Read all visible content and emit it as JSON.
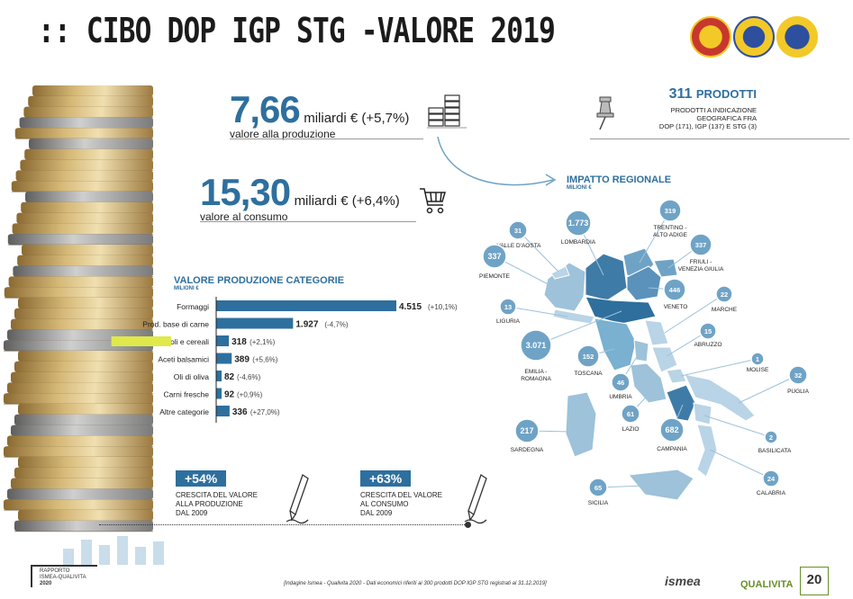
{
  "title": ":: CIBO DOP IGP STG -VALORE 2019",
  "production": {
    "value": "7,66",
    "unit": "miliardi € (+5,7%)",
    "label": "valore alla produzione"
  },
  "consumption": {
    "value": "15,30",
    "unit": "miliardi € (+6,4%)",
    "label": "valore al consumo"
  },
  "products": {
    "count": "311",
    "word": "PRODOTTI",
    "line1": "PRODOTTI A INDICAZIONE",
    "line2": "GEOGRAFICA FRA",
    "line3": "DOP (171), IGP (137) E STG (3)"
  },
  "colors": {
    "accent": "#2e6f9e",
    "highlight": "#dfe94a"
  },
  "chart_data": [
    {
      "type": "bar",
      "title": "VALORE PRODUZIONE CATEGORIE",
      "subtitle": "MILIONI €",
      "categories": [
        "Formaggi",
        "Prod. base di carne",
        "Ortofrutticoli e cereali",
        "Aceti balsamici",
        "Oli di oliva",
        "Carni fresche",
        "Altre categorie"
      ],
      "values": [
        4515,
        1927,
        318,
        389,
        82,
        92,
        336
      ],
      "value_labels": [
        "4.515",
        "1.927",
        "318",
        "389",
        "82",
        "92",
        "336"
      ],
      "changes": [
        "(+10,1%)",
        "(-4,7%)",
        "(+2,1%)",
        "(+5,6%)",
        "(-4,6%)",
        "(+0,9%)",
        "(+27,0%)"
      ],
      "highlight_word": "Ortofrutticoli",
      "highlight_rest": " e cereali"
    },
    {
      "type": "map",
      "title": "IMPATTO REGIONALE",
      "subtitle": "MILIONI €",
      "regions": [
        {
          "name": "VALLE D'AOSTA",
          "value": "31"
        },
        {
          "name": "LOMBARDIA",
          "value": "1.773"
        },
        {
          "name": "TRENTINO - ALTO ADIGE",
          "value": "319"
        },
        {
          "name": "FRIULI - VENEZIA GIULIA",
          "value": "337"
        },
        {
          "name": "PIEMONTE",
          "value": "337"
        },
        {
          "name": "VENETO",
          "value": "446"
        },
        {
          "name": "MARCHE",
          "value": "22"
        },
        {
          "name": "LIGURIA",
          "value": "13"
        },
        {
          "name": "ABRUZZO",
          "value": "15"
        },
        {
          "name": "EMILIA - ROMAGNA",
          "value": "3.071"
        },
        {
          "name": "TOSCANA",
          "value": "152"
        },
        {
          "name": "MOLISE",
          "value": "1"
        },
        {
          "name": "UMBRIA",
          "value": "46"
        },
        {
          "name": "PUGLIA",
          "value": "32"
        },
        {
          "name": "LAZIO",
          "value": "61"
        },
        {
          "name": "SARDEGNA",
          "value": "217"
        },
        {
          "name": "CAMPANIA",
          "value": "682"
        },
        {
          "name": "BASILICATA",
          "value": "2"
        },
        {
          "name": "CALABRIA",
          "value": "24"
        },
        {
          "name": "SICILIA",
          "value": "65"
        }
      ]
    }
  ],
  "growth": [
    {
      "pct": "+54%",
      "line1": "CRESCITA DEL VALORE",
      "line2": "ALLA PRODUZIONE",
      "line3": "DAL 2009"
    },
    {
      "pct": "+63%",
      "line1": "CRESCITA DEL VALORE",
      "line2": "AL CONSUMO",
      "line3": "DAL 2009"
    }
  ],
  "footer": {
    "report1": "RAPPORTO",
    "report2": "ISMEA-QUALIVITA",
    "report3": "2020",
    "note": "[Indagine Ismea - Qualivita 2020 - Dati economici riferiti ai 300 prodotti DOP IGP STG registrati al 31.12.2019]",
    "ismea": "ismea",
    "qualivita": "QUALIVITA",
    "anni": "20"
  }
}
